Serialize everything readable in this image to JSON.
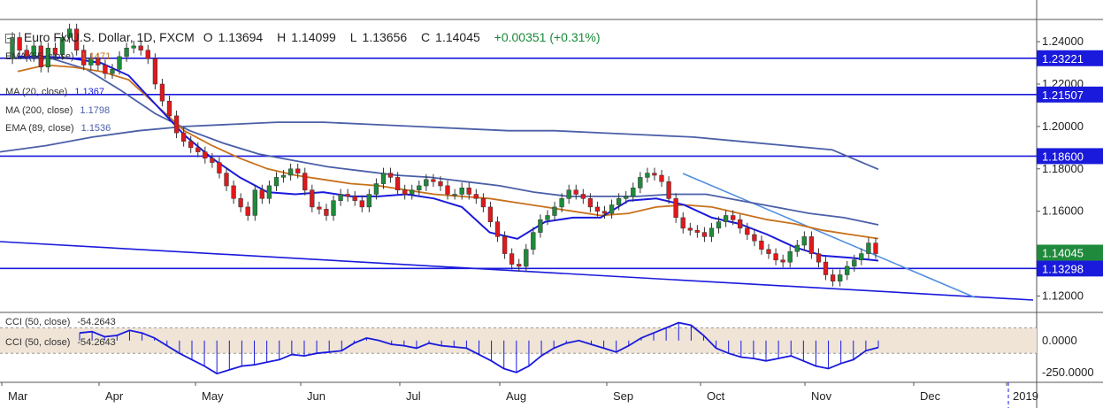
{
  "header": {
    "symbol": "Euro Fx/U.S. Dollar, 1D, FXCM",
    "open_label": "O",
    "open": "1.13694",
    "high_label": "H",
    "high": "1.14099",
    "low_label": "L",
    "low": "1.13656",
    "close_label": "C",
    "close": "1.14045",
    "change": "+0.00351 (+0.31%)"
  },
  "legend": [
    {
      "label": "EMA (55, close)",
      "value": "1.1471",
      "color": "#c8701c"
    },
    {
      "label": "MA (20, close)",
      "value": "1.1367",
      "color": "#1a1adc"
    },
    {
      "label": "MA (200, close)",
      "value": "1.1798",
      "color": "#4a5fa8"
    },
    {
      "label": "EMA (89, close)",
      "value": "1.1536",
      "color": "#4a5fa8"
    }
  ],
  "indicator_legend": [
    {
      "label": "CCI (50, close)",
      "value": "-54.2643"
    },
    {
      "label": "CCI (50, close)",
      "value": "-54.2643"
    }
  ],
  "colors": {
    "up": "#1f8a3b",
    "down": "#e0191c",
    "hline": "#1a1adc",
    "trend_light": "#4f8ee0",
    "ema55": "#c8701c",
    "ma20": "#1a1adc",
    "ma200": "#4a5fa8",
    "ema89": "#4a5fa8",
    "cci_band": "#efe4d6"
  },
  "chart_data": {
    "type": "candlestick",
    "price_axis_ticks": [
      "1.24000",
      "1.22000",
      "1.20000",
      "1.18000",
      "1.16000",
      "1.12000"
    ],
    "price_ylim": [
      1.1135,
      1.2505
    ],
    "time_axis_labels": [
      "Mar",
      "Apr",
      "May",
      "Jun",
      "Jul",
      "Aug",
      "Sep",
      "Oct",
      "Nov",
      "Dec",
      "2019"
    ],
    "horizontal_levels": [
      1.23221,
      1.21507,
      1.186,
      1.13298
    ],
    "level_labels": [
      "1.23221",
      "1.21507",
      "1.18600",
      "1.13298"
    ],
    "last_price_label": "1.14045",
    "ohlc_path": [
      1.232,
      1.242,
      1.236,
      1.233,
      1.238,
      1.228,
      1.237,
      1.234,
      1.242,
      1.246,
      1.236,
      1.229,
      1.232,
      1.229,
      1.225,
      1.227,
      1.233,
      1.237,
      1.238,
      1.236,
      1.232,
      1.22,
      1.212,
      1.205,
      1.197,
      1.193,
      1.19,
      1.188,
      1.185,
      1.183,
      1.178,
      1.172,
      1.166,
      1.162,
      1.158,
      1.17,
      1.166,
      1.172,
      1.176,
      1.177,
      1.18,
      1.178,
      1.17,
      1.162,
      1.161,
      1.158,
      1.165,
      1.168,
      1.167,
      1.165,
      1.162,
      1.168,
      1.173,
      1.178,
      1.176,
      1.17,
      1.168,
      1.17,
      1.172,
      1.175,
      1.174,
      1.172,
      1.168,
      1.168,
      1.171,
      1.168,
      1.166,
      1.162,
      1.155,
      1.148,
      1.14,
      1.135,
      1.134,
      1.142,
      1.15,
      1.156,
      1.158,
      1.162,
      1.166,
      1.17,
      1.168,
      1.166,
      1.162,
      1.16,
      1.159,
      1.163,
      1.166,
      1.167,
      1.171,
      1.176,
      1.178,
      1.177,
      1.174,
      1.166,
      1.157,
      1.152,
      1.151,
      1.15,
      1.148,
      1.152,
      1.155,
      1.158,
      1.156,
      1.152,
      1.149,
      1.146,
      1.142,
      1.14,
      1.137,
      1.136,
      1.141,
      1.144,
      1.148,
      1.14,
      1.136,
      1.13,
      1.127,
      1.13,
      1.134,
      1.137,
      1.14,
      1.145,
      1.14
    ],
    "ema55": [
      1.226,
      1.229,
      1.228,
      1.226,
      1.222,
      1.21,
      1.198,
      1.191,
      1.185,
      1.18,
      1.177,
      1.175,
      1.173,
      1.172,
      1.17,
      1.168,
      1.167,
      1.166,
      1.164,
      1.162,
      1.16,
      1.158,
      1.159,
      1.162,
      1.163,
      1.162,
      1.159,
      1.156,
      1.154,
      1.151,
      1.149,
      1.1471
    ],
    "ma20": [
      1.233,
      1.233,
      1.232,
      1.23,
      1.224,
      1.21,
      1.196,
      1.185,
      1.176,
      1.169,
      1.168,
      1.169,
      1.167,
      1.167,
      1.168,
      1.166,
      1.162,
      1.15,
      1.147,
      1.155,
      1.157,
      1.157,
      1.165,
      1.166,
      1.163,
      1.157,
      1.154,
      1.149,
      1.143,
      1.139,
      1.138,
      1.1367
    ],
    "ma200": [
      1.188,
      1.191,
      1.195,
      1.198,
      1.2,
      1.201,
      1.202,
      1.202,
      1.201,
      1.2,
      1.199,
      1.198,
      1.198,
      1.197,
      1.196,
      1.195,
      1.193,
      1.191,
      1.189,
      1.1798
    ],
    "ema89": [
      1.233,
      1.232,
      1.227,
      1.217,
      1.206,
      1.198,
      1.192,
      1.187,
      1.184,
      1.181,
      1.179,
      1.177,
      1.176,
      1.174,
      1.172,
      1.169,
      1.167,
      1.167,
      1.167,
      1.168,
      1.168,
      1.165,
      1.162,
      1.159,
      1.157,
      1.1536
    ],
    "cci_axis_ticks": [
      "0.0000",
      "-250.0000"
    ],
    "cci_ylim": [
      -300,
      200
    ],
    "cci_band": [
      -100,
      100
    ],
    "cci": [
      60,
      70,
      30,
      40,
      80,
      60,
      20,
      -40,
      -100,
      -150,
      -200,
      -260,
      -230,
      -200,
      -190,
      -170,
      -150,
      -110,
      -120,
      -100,
      -90,
      -80,
      -20,
      20,
      0,
      -30,
      -40,
      -60,
      -20,
      -40,
      -50,
      -60,
      -110,
      -160,
      -220,
      -250,
      -200,
      -120,
      -60,
      -20,
      0,
      -30,
      -60,
      -90,
      -40,
      20,
      60,
      100,
      140,
      120,
      40,
      -60,
      -100,
      -130,
      -140,
      -160,
      -140,
      -120,
      -160,
      -200,
      -220,
      -180,
      -150,
      -80,
      -54.26
    ]
  }
}
